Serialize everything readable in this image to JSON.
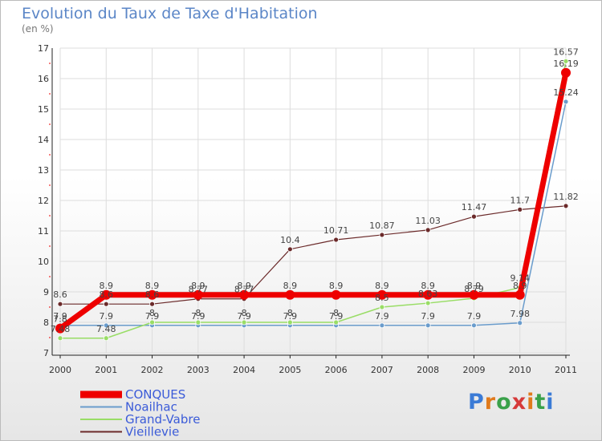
{
  "title": "Evolution du Taux de Taxe d'Habitation",
  "subtitle": "(en %)",
  "brand": {
    "text": "Proxiti",
    "colors": [
      "#3b7bd6",
      "#e07a1c",
      "#3aa14a",
      "#d63a3a",
      "#e07a1c",
      "#3aa14a",
      "#3b7bd6"
    ]
  },
  "chart_data": {
    "type": "line",
    "title": "Evolution du Taux de Taxe d'Habitation",
    "ylabel": "(en %)",
    "xlabel": "",
    "ylim": [
      7,
      17
    ],
    "yticks": [
      7,
      8,
      9,
      10,
      11,
      12,
      13,
      14,
      15,
      16,
      17
    ],
    "grid": true,
    "legend_position": "bottom-left",
    "x": [
      "2000",
      "2001",
      "2002",
      "2003",
      "2004",
      "2005",
      "2006",
      "2007",
      "2008",
      "2009",
      "2010",
      "2011"
    ],
    "series": [
      {
        "name": "CONQUES",
        "color": "#ee0000",
        "width": 7,
        "marker_r": 6,
        "values": [
          7.8,
          8.9,
          8.9,
          8.9,
          8.9,
          8.9,
          8.9,
          8.9,
          8.9,
          8.9,
          8.9,
          16.19
        ],
        "labels": [
          "7.8",
          "8.9",
          "8.9",
          "8.9",
          "8.9",
          "8.9",
          "8.9",
          "8.9",
          "8.9",
          "8.9",
          "8.9",
          "16.19"
        ]
      },
      {
        "name": "Noailhac",
        "color": "#6a9ccc",
        "width": 1.5,
        "marker_r": 3,
        "values": [
          7.9,
          7.9,
          7.9,
          7.9,
          7.9,
          7.9,
          7.9,
          7.9,
          7.9,
          7.9,
          7.98,
          15.24
        ],
        "labels": [
          "7.9",
          "7.9",
          "7.9",
          "7.9",
          "7.9",
          "7.9",
          "7.9",
          "7.9",
          "7.9",
          "7.9",
          "7.98",
          "15.24"
        ]
      },
      {
        "name": "Grand-Vabre",
        "color": "#99dd66",
        "width": 1.5,
        "marker_r": 3,
        "values": [
          7.48,
          7.48,
          8,
          8,
          8,
          8,
          8,
          8.5,
          8.63,
          8.79,
          9.14,
          16.57
        ],
        "labels": [
          "7.48",
          "7.48",
          "8",
          "8",
          "8",
          "8",
          "8",
          "8.5",
          "8.63",
          "8.79",
          "9.14",
          "16.57"
        ]
      },
      {
        "name": "Vieillevie",
        "color": "#6b2a2a",
        "width": 1.2,
        "marker_r": 3,
        "values": [
          8.6,
          8.6,
          8.6,
          8.77,
          8.77,
          10.4,
          10.71,
          10.87,
          11.03,
          11.47,
          11.7,
          11.82
        ],
        "labels": [
          "8.6",
          "8.6",
          "8.6",
          "8.77",
          "8.77",
          "10.4",
          "10.71",
          "10.87",
          "11.03",
          "11.47",
          "11.7",
          "11.82"
        ]
      }
    ]
  }
}
